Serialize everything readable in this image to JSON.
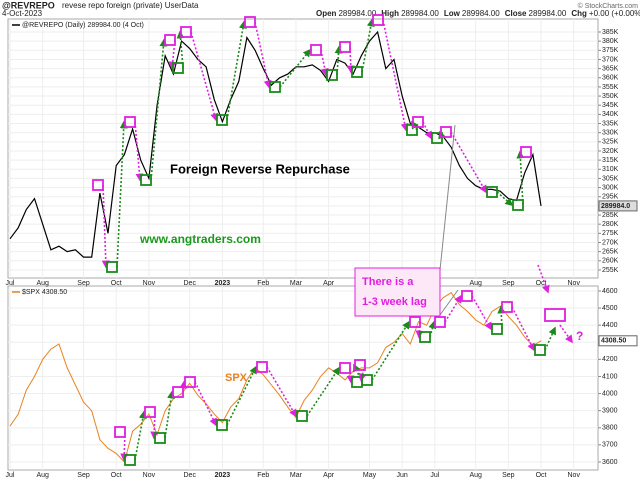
{
  "chart_data": [
    {
      "type": "line",
      "symbol": "@REVREPO",
      "description": "revese repo foreign (private) UserData",
      "date": "4-Oct-2023",
      "quote": [
        {
          "label": "Open",
          "value": "289984.00"
        },
        {
          "label": "High",
          "value": "289984.00"
        },
        {
          "label": "Low",
          "value": "289984.00"
        },
        {
          "label": "Close",
          "value": "289984.00"
        },
        {
          "label": "Chg",
          "value": "+0.00 (+0.00%)"
        }
      ],
      "credit": "© StockCharts.com",
      "annotations": [
        "Foreign Reverse Repurchase",
        "www.angtraders.com"
      ],
      "callout": [
        "There is a",
        "1-3 week lag"
      ],
      "categories": [
        "Jul",
        null,
        null,
        null,
        "Aug",
        null,
        null,
        null,
        null,
        "Sep",
        null,
        null,
        null,
        "Oct",
        null,
        null,
        null,
        "Nov",
        null,
        null,
        null,
        null,
        "Dec",
        null,
        null,
        null,
        "2023",
        null,
        null,
        null,
        null,
        "Feb",
        null,
        null,
        null,
        "Mar",
        null,
        null,
        null,
        "Apr",
        null,
        null,
        null,
        null,
        "May",
        null,
        null,
        null,
        "Jun",
        null,
        null,
        null,
        "Jul",
        null,
        null,
        null,
        null,
        "Aug",
        null,
        null,
        null,
        "Sep",
        null,
        null,
        null,
        "Oct",
        null,
        null,
        null,
        "Nov"
      ],
      "series": [
        {
          "name": "@REVREPO (Daily) 289984.00 (4 Oct)",
          "color": "#000000",
          "last_label": "289984.0",
          "values": [
            272000,
            278000,
            288000,
            294000,
            280000,
            266000,
            268000,
            265000,
            266000,
            262000,
            262000,
            297000,
            275000,
            312000,
            318000,
            332000,
            315000,
            305000,
            345000,
            372000,
            362000,
            380000,
            376000,
            370000,
            366000,
            348000,
            336000,
            348000,
            358000,
            382000,
            375000,
            365000,
            356000,
            360000,
            362000,
            366000,
            366000,
            367000,
            364000,
            358000,
            370000,
            368000,
            362000,
            372000,
            380000,
            385000,
            365000,
            370000,
            350000,
            335000,
            333000,
            330000,
            330000,
            328000,
            322000,
            312000,
            305000,
            301000,
            299000,
            299000,
            298000,
            294000,
            293000,
            308000,
            318000,
            289984,
            null,
            null,
            null,
            null
          ]
        }
      ],
      "ylim": [
        250600,
        392100
      ],
      "yticks": [
        {
          "value": 255000,
          "label": "255K"
        },
        {
          "value": 260000,
          "label": "260K"
        },
        {
          "value": 265000,
          "label": "265K"
        },
        {
          "value": 270000,
          "label": "270K"
        },
        {
          "value": 275000,
          "label": "275K"
        },
        {
          "value": 280000,
          "label": "280K"
        },
        {
          "value": 285000,
          "label": "285K"
        },
        {
          "value": 290000,
          "label": "290K"
        },
        {
          "value": 295000,
          "label": "295K"
        },
        {
          "value": 300000,
          "label": "300K"
        },
        {
          "value": 305000,
          "label": "305K"
        },
        {
          "value": 310000,
          "label": "310K"
        },
        {
          "value": 315000,
          "label": "315K"
        },
        {
          "value": 320000,
          "label": "320K"
        },
        {
          "value": 325000,
          "label": "325K"
        },
        {
          "value": 330000,
          "label": "330K"
        },
        {
          "value": 335000,
          "label": "335K"
        },
        {
          "value": 340000,
          "label": "340K"
        },
        {
          "value": 345000,
          "label": "345K"
        },
        {
          "value": 350000,
          "label": "350K"
        },
        {
          "value": 355000,
          "label": "355K"
        },
        {
          "value": 360000,
          "label": "360K"
        },
        {
          "value": 365000,
          "label": "365K"
        },
        {
          "value": 370000,
          "label": "370K"
        },
        {
          "value": 375000,
          "label": "375K"
        },
        {
          "value": 380000,
          "label": "380K"
        },
        {
          "value": 385000,
          "label": "385K"
        }
      ],
      "grid": true
    },
    {
      "type": "line",
      "annotations": [
        "SPX",
        "?"
      ],
      "categories": [
        "Jul",
        null,
        null,
        null,
        "Aug",
        null,
        null,
        null,
        null,
        "Sep",
        null,
        null,
        null,
        "Oct",
        null,
        null,
        null,
        "Nov",
        null,
        null,
        null,
        null,
        "Dec",
        null,
        null,
        null,
        "2023",
        null,
        null,
        null,
        null,
        "Feb",
        null,
        null,
        null,
        "Mar",
        null,
        null,
        null,
        "Apr",
        null,
        null,
        null,
        null,
        "May",
        null,
        null,
        null,
        "Jun",
        null,
        null,
        null,
        "Jul",
        null,
        null,
        null,
        null,
        "Aug",
        null,
        null,
        null,
        "Sep",
        null,
        null,
        null,
        "Oct",
        null,
        null,
        null,
        "Nov"
      ],
      "series": [
        {
          "name": "$SPX 4308.50",
          "color": "#e8821e",
          "last_label": "4308.50",
          "values": [
            3810,
            3880,
            4020,
            4100,
            4200,
            4260,
            4290,
            4150,
            4050,
            3950,
            3900,
            3730,
            3680,
            3650,
            3600,
            3780,
            3820,
            3880,
            3760,
            3900,
            3970,
            4000,
            4060,
            3990,
            3940,
            3880,
            3830,
            3920,
            3970,
            4080,
            4150,
            4110,
            4050,
            3990,
            3920,
            3860,
            3960,
            4020,
            4100,
            4150,
            4120,
            4080,
            4130,
            4150,
            4150,
            4180,
            4270,
            4300,
            4350,
            4290,
            4420,
            4400,
            4500,
            4560,
            4590,
            4520,
            4480,
            4430,
            4400,
            4480,
            4510,
            4450,
            4400,
            4330,
            4280,
            4308.5,
            null,
            null,
            null,
            null
          ]
        }
      ],
      "ylim": [
        3553,
        4629
      ],
      "yticks": [
        3600,
        3700,
        3800,
        3900,
        4000,
        4100,
        4200,
        4300,
        4400,
        4500,
        4600
      ],
      "grid": true
    }
  ]
}
